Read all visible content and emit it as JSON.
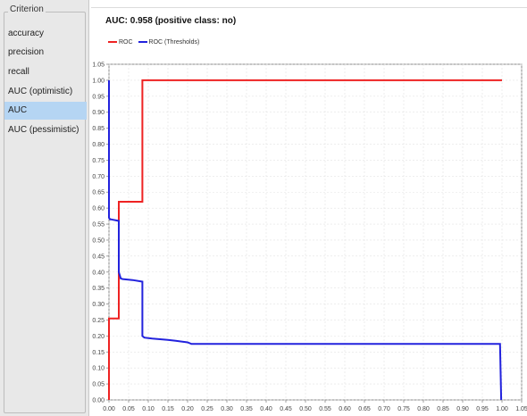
{
  "criterion_panel": {
    "legend": "Criterion",
    "items": [
      {
        "label": "accuracy",
        "selected": false
      },
      {
        "label": "precision",
        "selected": false
      },
      {
        "label": "recall",
        "selected": false
      },
      {
        "label": "AUC (optimistic)",
        "selected": false
      },
      {
        "label": "AUC",
        "selected": true
      },
      {
        "label": "AUC (pessimistic)",
        "selected": false
      }
    ],
    "selected_color": "#b5d5f3"
  },
  "plot": {
    "title": "AUC: 0.958 (positive class: no)"
  },
  "chart_data": {
    "type": "line",
    "xlim": [
      0.0,
      1.05
    ],
    "ylim": [
      0.0,
      1.05
    ],
    "grid": true,
    "legend_position": "top-left",
    "xticks": [
      "0.00",
      "0.05",
      "0.10",
      "0.15",
      "0.20",
      "0.25",
      "0.30",
      "0.35",
      "0.40",
      "0.45",
      "0.50",
      "0.55",
      "0.60",
      "0.65",
      "0.70",
      "0.75",
      "0.80",
      "0.85",
      "0.90",
      "0.95",
      "1.00",
      "1.05"
    ],
    "yticks": [
      "0.00",
      "0.05",
      "0.10",
      "0.15",
      "0.20",
      "0.25",
      "0.30",
      "0.35",
      "0.40",
      "0.45",
      "0.50",
      "0.55",
      "0.60",
      "0.65",
      "0.70",
      "0.75",
      "0.80",
      "0.85",
      "0.90",
      "0.95",
      "1.00",
      "1.05"
    ],
    "series": [
      {
        "name": "ROC",
        "color": "#ee2222",
        "x": [
          0.0,
          0.0,
          0.005,
          0.005,
          0.025,
          0.025,
          0.085,
          0.085,
          1.0
        ],
        "y": [
          0.0,
          0.255,
          0.255,
          0.255,
          0.255,
          0.62,
          0.62,
          1.0,
          1.0
        ]
      },
      {
        "name": "ROC (Thresholds)",
        "color": "#2222dd",
        "x": [
          0.0,
          0.0,
          0.003,
          0.005,
          0.025,
          0.025,
          0.03,
          0.035,
          0.06,
          0.085,
          0.085,
          0.09,
          0.11,
          0.13,
          0.15,
          0.17,
          0.2,
          0.21,
          0.6,
          0.995,
          0.998
        ],
        "y": [
          1.0,
          0.57,
          0.565,
          0.565,
          0.56,
          0.4,
          0.38,
          0.378,
          0.375,
          0.37,
          0.2,
          0.195,
          0.192,
          0.19,
          0.188,
          0.185,
          0.18,
          0.175,
          0.175,
          0.175,
          0.0
        ]
      }
    ]
  }
}
